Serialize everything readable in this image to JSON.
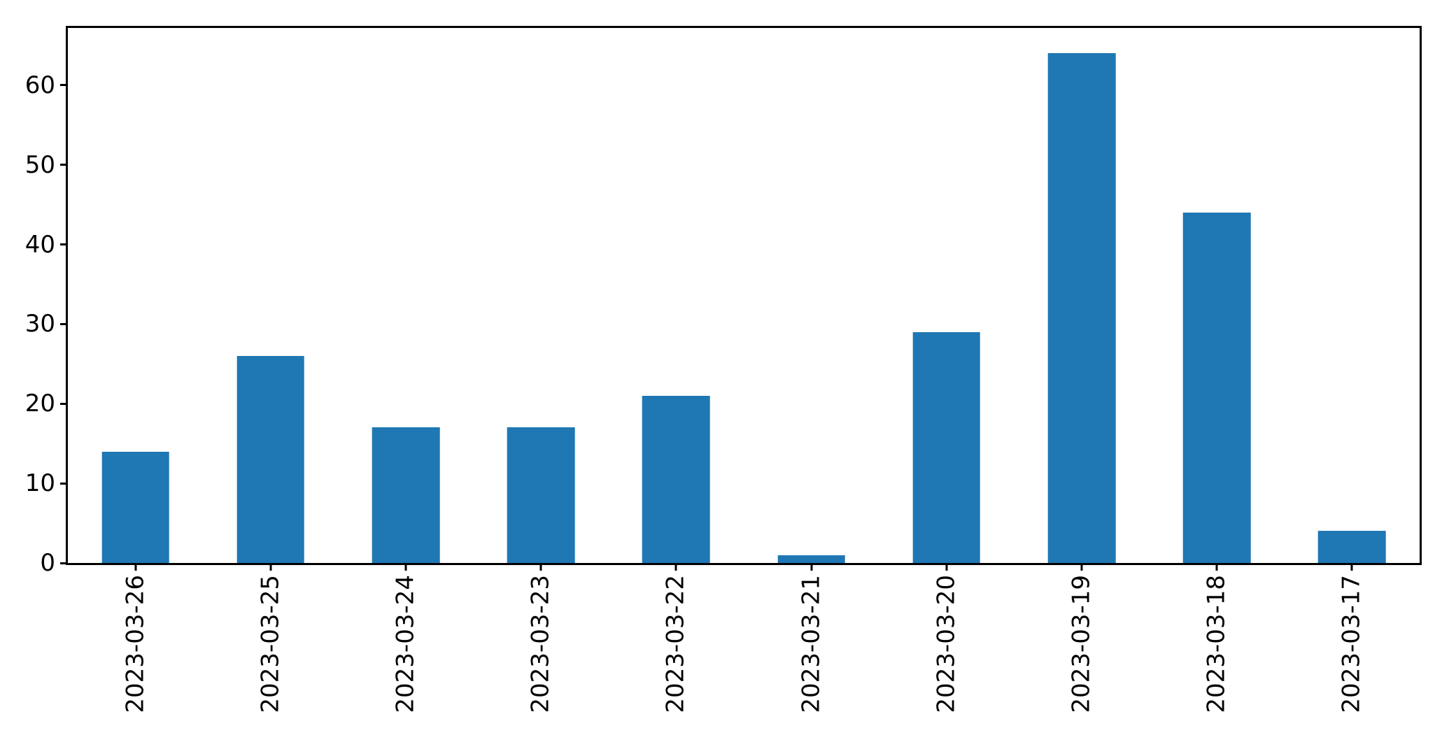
{
  "chart_data": {
    "type": "bar",
    "title": "",
    "xlabel": "",
    "ylabel": "",
    "categories": [
      "2023-03-26",
      "2023-03-25",
      "2023-03-24",
      "2023-03-23",
      "2023-03-22",
      "2023-03-21",
      "2023-03-20",
      "2023-03-19",
      "2023-03-18",
      "2023-03-17"
    ],
    "values": [
      14,
      26,
      17,
      17,
      21,
      1,
      29,
      64,
      44,
      4
    ],
    "yticks": [
      0,
      10,
      20,
      30,
      40,
      50,
      60
    ],
    "ylim": [
      0,
      67.2
    ],
    "x_tick_rotation_deg": 90,
    "bar_width_fraction": 0.5,
    "grid": false,
    "legend_position": "none",
    "bar_color": "#1f77b4",
    "axis_color": "#000000",
    "tick_label_color": "#000000",
    "background_color": "#ffffff"
  }
}
